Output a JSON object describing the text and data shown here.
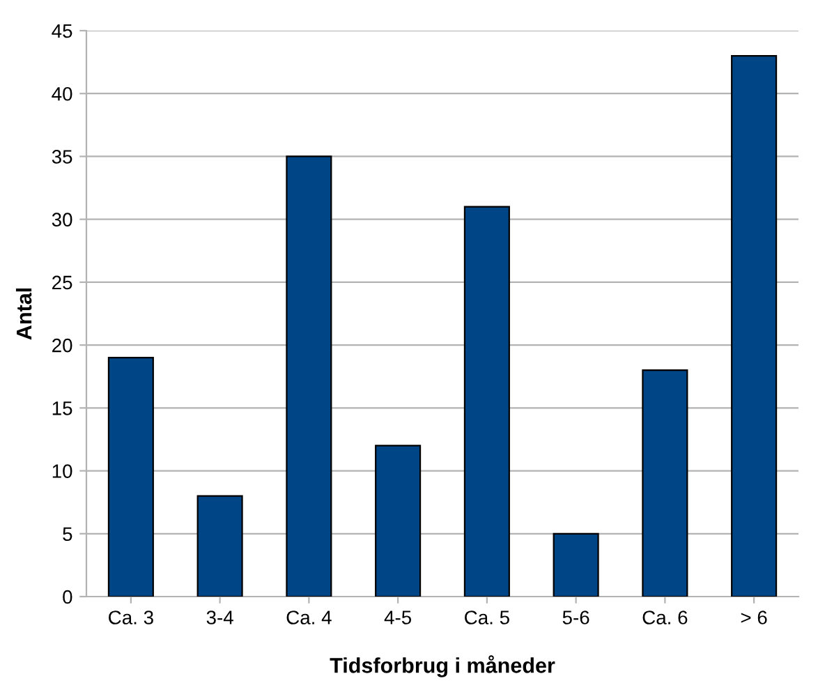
{
  "chart_data": {
    "type": "bar",
    "xlabel": "Tidsforbrug i måneder",
    "ylabel": "Antal",
    "categories": [
      "Ca. 3",
      "3-4",
      "Ca. 4",
      "4-5",
      "Ca. 5",
      "5-6",
      "Ca. 6",
      "> 6"
    ],
    "values": [
      19,
      8,
      35,
      12,
      31,
      5,
      18,
      43
    ],
    "color": "#004586",
    "ylim": [
      0,
      45
    ],
    "yticks": [
      0,
      5,
      10,
      15,
      20,
      25,
      30,
      35,
      40,
      45
    ],
    "grid": "y",
    "legend": false
  }
}
